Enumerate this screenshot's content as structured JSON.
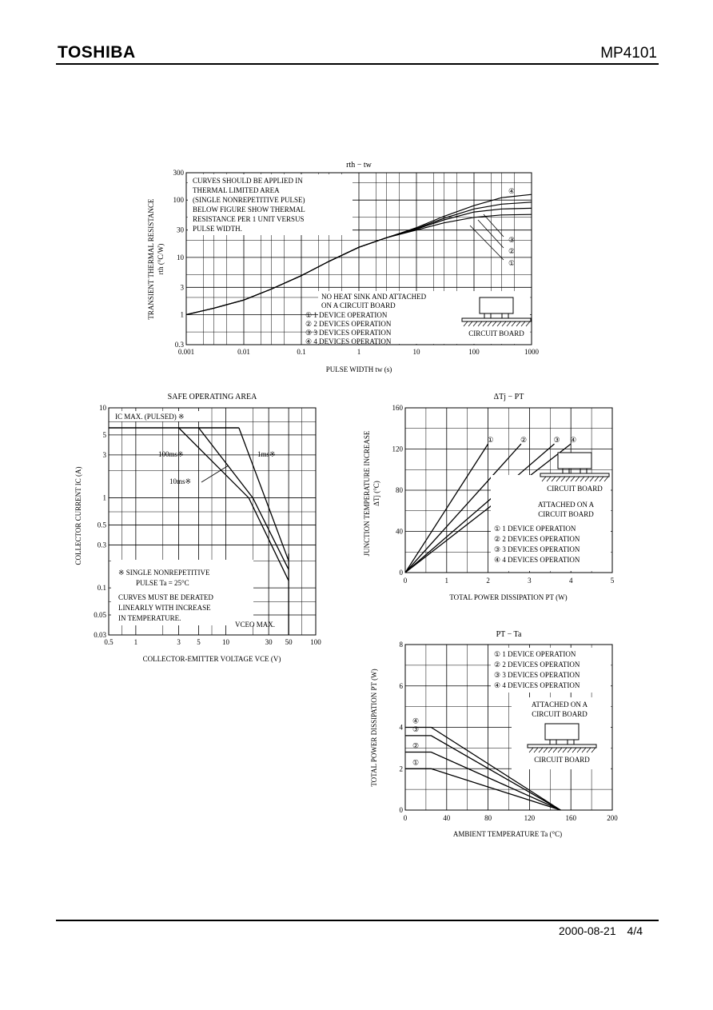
{
  "header": {
    "logo": "TOSHIBA",
    "part_number": "MP4101"
  },
  "footer": {
    "date": "2000-08-21",
    "page": "4/4"
  },
  "chart_data": [
    {
      "id": "rth",
      "type": "line",
      "title": "rth − tw",
      "xlabel": "PULSE WIDTH   tw   (s)",
      "ylabel": "TRANSIENT THERMAL RESISTANCE",
      "ylabel2": "rth   (°C/W)",
      "x_scale": "log",
      "y_scale": "log",
      "xlim": [
        0.001,
        1000
      ],
      "ylim": [
        0.3,
        300
      ],
      "x_ticks": [
        0.001,
        0.01,
        0.1,
        1,
        10,
        100,
        1000
      ],
      "x_tick_labels": [
        "0.001",
        "0.01",
        "0.1",
        "1",
        "10",
        "100",
        "1000"
      ],
      "y_ticks": [
        0.3,
        1,
        3,
        10,
        30,
        100,
        300
      ],
      "y_tick_labels": [
        "0.3",
        "1",
        "3",
        "10",
        "30",
        "100",
        "300"
      ],
      "note": [
        "CURVES SHOULD BE APPLIED IN",
        "THERMAL LIMITED AREA",
        "(SINGLE NONREPETITIVE PULSE)",
        "BELOW FIGURE SHOW THERMAL",
        "RESISTANCE PER 1 UNIT VERSUS",
        "PULSE WIDTH."
      ],
      "condition": [
        "NO HEAT SINK AND ATTACHED",
        "ON A CIRCUIT BOARD"
      ],
      "legend": [
        "① 1 DEVICE OPERATION",
        "② 2 DEVICES OPERATION",
        "③ 3 DEVICES OPERATION",
        "④ 4 DEVICES OPERATION"
      ],
      "board_label": "CIRCUIT BOARD",
      "curve_markers": [
        "④",
        "③",
        "②",
        "①"
      ],
      "series": [
        {
          "name": "①",
          "x": [
            0.001,
            0.003,
            0.01,
            0.03,
            0.1,
            0.3,
            1,
            3,
            10,
            30,
            100,
            300,
            1000
          ],
          "values": [
            1.0,
            1.3,
            1.8,
            2.8,
            4.8,
            8.5,
            15,
            22,
            30,
            40,
            50,
            55,
            56
          ]
        },
        {
          "name": "②",
          "x": [
            0.001,
            0.003,
            0.01,
            0.03,
            0.1,
            0.3,
            1,
            3,
            10,
            30,
            100,
            300,
            1000
          ],
          "values": [
            1.0,
            1.3,
            1.8,
            2.8,
            4.8,
            8.5,
            15,
            22,
            31,
            45,
            62,
            70,
            72
          ]
        },
        {
          "name": "③",
          "x": [
            0.001,
            0.003,
            0.01,
            0.03,
            0.1,
            0.3,
            1,
            3,
            10,
            30,
            100,
            300,
            1000
          ],
          "values": [
            1.0,
            1.3,
            1.8,
            2.8,
            4.8,
            8.5,
            15,
            22,
            32,
            48,
            70,
            85,
            92
          ]
        },
        {
          "name": "④",
          "x": [
            0.001,
            0.003,
            0.01,
            0.03,
            0.1,
            0.3,
            1,
            3,
            10,
            30,
            100,
            300,
            1000
          ],
          "values": [
            1.0,
            1.3,
            1.8,
            2.8,
            4.8,
            8.5,
            15,
            22,
            33,
            52,
            80,
            110,
            125
          ]
        }
      ]
    },
    {
      "id": "soa",
      "type": "line",
      "title": "SAFE OPERATING AREA",
      "xlabel": "COLLECTOR-EMITTER VOLTAGE   VCE   (V)",
      "ylabel": "COLLECTOR CURRENT   IC   (A)",
      "x_scale": "log",
      "y_scale": "log",
      "xlim": [
        0.5,
        100
      ],
      "ylim": [
        0.03,
        10
      ],
      "x_ticks": [
        0.5,
        1,
        3,
        5,
        10,
        30,
        50,
        100
      ],
      "x_tick_labels": [
        "0.5",
        "1",
        "3",
        "5",
        "10",
        "30",
        "50",
        "100"
      ],
      "y_ticks": [
        0.03,
        0.05,
        0.1,
        0.3,
        0.5,
        1,
        3,
        5,
        10
      ],
      "y_tick_labels": [
        "0.03",
        "0.05",
        "0.1",
        "0.3",
        "0.5",
        "1",
        "3",
        "5",
        "10"
      ],
      "labels": {
        "ic_max": "IC MAX. (PULSED) ※",
        "t100ms": "100ms※",
        "t1ms": "1ms※",
        "t10ms": "10ms※",
        "vceo": "VCEO MAX."
      },
      "note1": [
        "※  SINGLE NONREPETITIVE",
        "PULSE   Ta = 25°C"
      ],
      "note2": [
        "CURVES MUST BE DERATED",
        "LINEARLY WITH INCREASE",
        "IN TEMPERATURE."
      ],
      "series": [
        {
          "name": "100ms※",
          "x": [
            3,
            18,
            50
          ],
          "values": [
            6,
            1,
            0.12
          ]
        },
        {
          "name": "10ms※",
          "x": [
            5,
            20,
            50
          ],
          "values": [
            6,
            1,
            0.16
          ]
        },
        {
          "name": "1ms※",
          "x": [
            14,
            50
          ],
          "values": [
            6,
            0.2
          ]
        }
      ],
      "ic_max": 6,
      "vceo_max": 50
    },
    {
      "id": "dtj",
      "type": "line",
      "title": "ΔTj − PT",
      "xlabel": "TOTAL POWER DISSIPATION   PT   (W)",
      "ylabel": "JUNCTION TEMPERATURE INCREASE",
      "ylabel2": "ΔTj   (°C)",
      "xlim": [
        0,
        5
      ],
      "ylim": [
        0,
        160
      ],
      "x_ticks": [
        0,
        1,
        2,
        3,
        4,
        5
      ],
      "y_ticks": [
        0,
        40,
        80,
        120,
        160
      ],
      "condition": [
        "ATTACHED ON A",
        "CIRCUIT BOARD"
      ],
      "legend": [
        "① 1 DEVICE OPERATION",
        "② 2 DEVICES OPERATION",
        "③ 3 DEVICES OPERATION",
        "④ 4 DEVICES OPERATION"
      ],
      "board_label": "CIRCUIT BOARD",
      "series": [
        {
          "name": "①",
          "x": [
            0,
            2.0
          ],
          "values": [
            0,
            125
          ]
        },
        {
          "name": "②",
          "x": [
            0,
            2.8
          ],
          "values": [
            0,
            125
          ]
        },
        {
          "name": "③",
          "x": [
            0,
            3.6
          ],
          "values": [
            0,
            125
          ]
        },
        {
          "name": "④",
          "x": [
            0,
            4.0
          ],
          "values": [
            0,
            125
          ]
        }
      ]
    },
    {
      "id": "ptta",
      "type": "line",
      "title": "PT − Ta",
      "xlabel": "AMBIENT TEMPERATURE   Ta   (°C)",
      "ylabel": "TOTAL POWER DISSIPATION   PT   (W)",
      "xlim": [
        0,
        200
      ],
      "ylim": [
        0,
        8
      ],
      "x_ticks": [
        0,
        40,
        80,
        120,
        160,
        200
      ],
      "y_ticks": [
        0,
        2,
        4,
        6,
        8
      ],
      "condition": [
        "ATTACHED ON A",
        "CIRCUIT BOARD"
      ],
      "legend": [
        "① 1 DEVICE OPERATION",
        "② 2 DEVICES OPERATION",
        "③ 3 DEVICES OPERATION",
        "④ 4 DEVICES OPERATION"
      ],
      "board_label": "CIRCUIT BOARD",
      "series": [
        {
          "name": "①",
          "x": [
            0,
            25,
            150
          ],
          "values": [
            2.0,
            2.0,
            0
          ]
        },
        {
          "name": "②",
          "x": [
            0,
            25,
            150
          ],
          "values": [
            2.8,
            2.8,
            0
          ]
        },
        {
          "name": "③",
          "x": [
            0,
            25,
            150
          ],
          "values": [
            3.6,
            3.6,
            0
          ]
        },
        {
          "name": "④",
          "x": [
            0,
            25,
            150
          ],
          "values": [
            4.0,
            4.0,
            0
          ]
        }
      ]
    }
  ]
}
